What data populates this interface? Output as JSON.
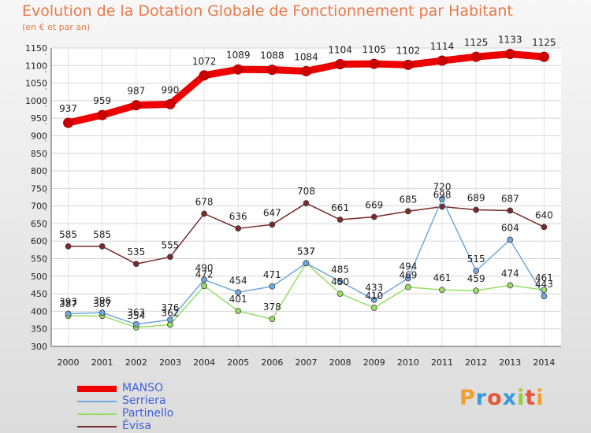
{
  "chart_data": {
    "type": "line",
    "title": "Evolution de la Dotation Globale de Fonctionnement par Habitant",
    "subtitle": "(en € et par an)",
    "x": [
      "2000",
      "2001",
      "2002",
      "2003",
      "2004",
      "2005",
      "2006",
      "2007",
      "2008",
      "2009",
      "2010",
      "2011",
      "2012",
      "2013",
      "2014"
    ],
    "ylim": [
      300,
      1150
    ],
    "yticks": [
      300,
      350,
      400,
      450,
      500,
      550,
      600,
      650,
      700,
      750,
      800,
      850,
      900,
      950,
      1000,
      1050,
      1100,
      1150
    ],
    "grid": true,
    "legend_position": "bottom-left",
    "series": [
      {
        "name": "MANSO",
        "color": "#ee0000",
        "values": [
          937,
          959,
          987,
          990,
          1072,
          1089,
          1088,
          1084,
          1104,
          1105,
          1102,
          1114,
          1125,
          1133,
          1125
        ]
      },
      {
        "name": "Serriera",
        "color": "#6fa8dc",
        "values": [
          393,
          396,
          363,
          376,
          490,
          454,
          471,
          537,
          485,
          433,
          494,
          720,
          515,
          604,
          443
        ]
      },
      {
        "name": "Partinello",
        "color": "#99dd66",
        "values": [
          387,
          387,
          354,
          362,
          472,
          401,
          378,
          537,
          450,
          410,
          469,
          461,
          459,
          474,
          461
        ]
      },
      {
        "name": "Évisa",
        "color": "#7a2a2a",
        "values": [
          585,
          585,
          535,
          555,
          678,
          636,
          647,
          708,
          661,
          669,
          685,
          698,
          689,
          687,
          640
        ]
      }
    ]
  },
  "logo": {
    "letters": [
      "P",
      "r",
      "o",
      "x",
      "i",
      "t",
      "i"
    ],
    "colors": [
      "#f0a030",
      "#3a9ad9",
      "#e8563a",
      "#3a9ad9",
      "#9acd32",
      "#e8563a",
      "#f0a030"
    ]
  }
}
